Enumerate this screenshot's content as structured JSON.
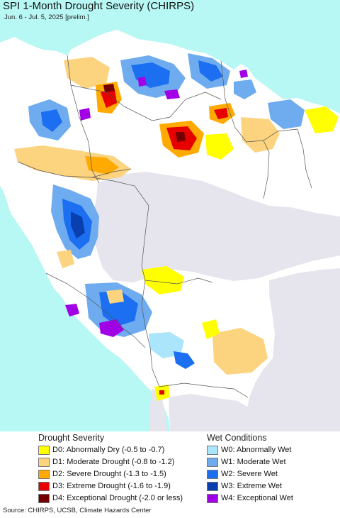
{
  "title": "SPI 1-Month Drought Severity (CHIRPS)",
  "subtitle": "Jun. 6 - Jul. 5, 2025 [prelim.]",
  "colors": {
    "ocean": "#b7f7f4",
    "outside": "#e6e4ec",
    "land": "#ffffff",
    "border": "#555555"
  },
  "legend": {
    "drought_heading": "Drought Severity",
    "wet_heading": "Wet Conditions",
    "drought": [
      {
        "code": "D0:",
        "label": "Abnormally Dry (-0.5 to -0.7)",
        "color": "#ffff00"
      },
      {
        "code": "D1:",
        "label": "Moderate Drought (-0.8 to -1.2)",
        "color": "#fcd37f"
      },
      {
        "code": "D2:",
        "label": "Severe Drought (-1.3 to -1.5)",
        "color": "#ffaa00"
      },
      {
        "code": "D3:",
        "label": "Extreme Drought (-1.6 to -1.9)",
        "color": "#e60000"
      },
      {
        "code": "D4:",
        "label": "Exceptional Drought (-2.0 or less)",
        "color": "#730000"
      }
    ],
    "wet": [
      {
        "code": "W0:",
        "label": "Abnormally Wet",
        "color": "#aae5fc"
      },
      {
        "code": "W1:",
        "label": "Moderate Wet",
        "color": "#6fabef"
      },
      {
        "code": "W2:",
        "label": "Severe Wet",
        "color": "#1b6ff0"
      },
      {
        "code": "W3:",
        "label": "Extreme Wet",
        "color": "#0a3fb0"
      },
      {
        "code": "W4:",
        "label": "Exceptional Wet",
        "color": "#a100e6"
      }
    ]
  },
  "source": "Source: CHIRPS, UCSB, Climate Hazards Center"
}
